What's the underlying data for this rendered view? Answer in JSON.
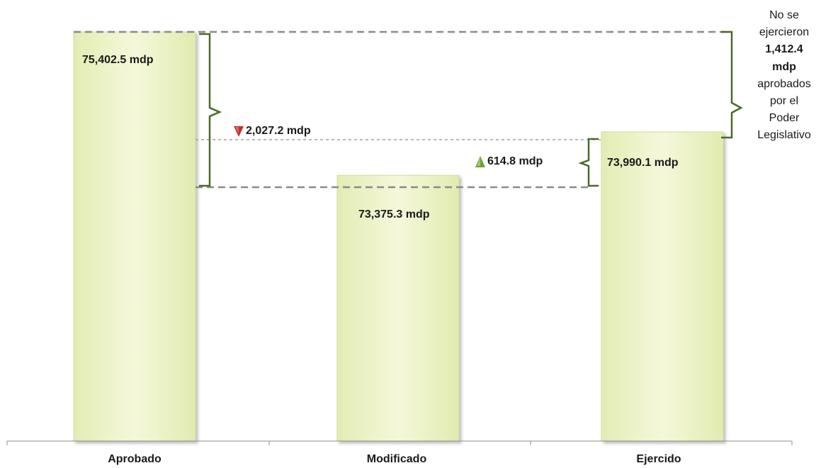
{
  "chart_data": {
    "type": "bar",
    "categories": [
      "Aprobado",
      "Modificado",
      "Ejercido"
    ],
    "values": [
      75402.5,
      73375.3,
      73990.1
    ],
    "value_labels": [
      "75,402.5 mdp",
      "73,375.3 mdp",
      "73,990.1 mdp"
    ],
    "bar_color": "#f0f5d0",
    "annotations": {
      "decrease": {
        "label": "2,027.2 mdp",
        "color": "#c0302b"
      },
      "increase": {
        "label": "614.8 mdp",
        "color": "#6aa23a"
      },
      "note": [
        "No se",
        "ejercieron",
        "1,412.4",
        "mdp",
        "aprobados",
        "por el",
        "Poder",
        "Legislativo"
      ]
    }
  }
}
